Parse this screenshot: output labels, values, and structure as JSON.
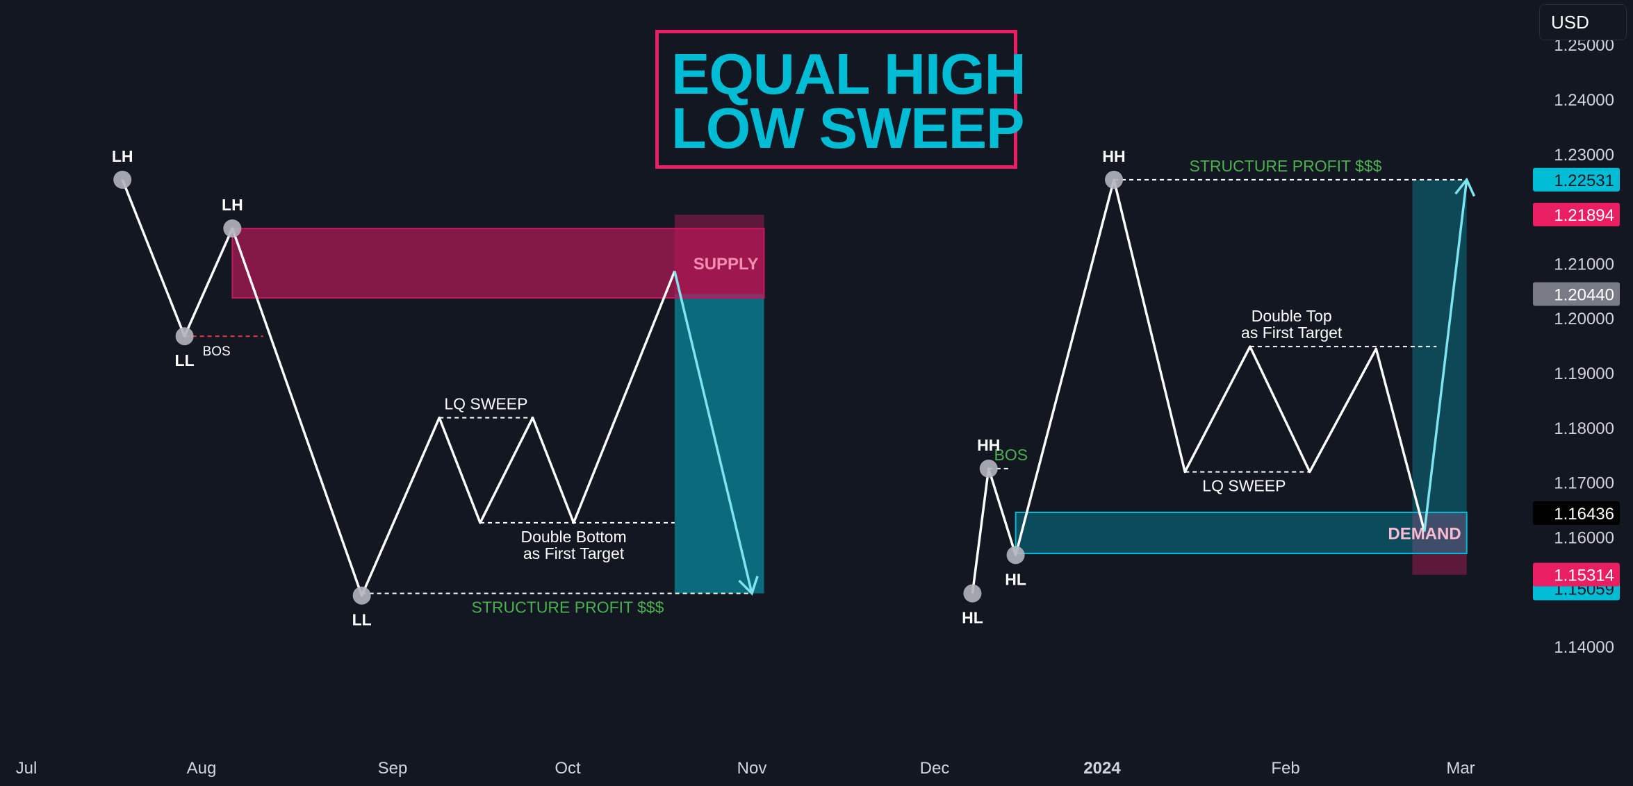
{
  "currency_label": "USD",
  "title": {
    "line1": "EQUAL HIGH",
    "line2": "LOW SWEEP"
  },
  "colors": {
    "background": "#131722",
    "accent_cyan": "#00bcd4",
    "accent_pink": "#e91e63",
    "profit_green": "#4caf50",
    "bos_red": "#f23645"
  },
  "chart_data": {
    "type": "line",
    "x_labels": [
      "Jul",
      "Aug",
      "Sep",
      "Oct",
      "Nov",
      "Dec",
      "2024",
      "Feb",
      "Mar"
    ],
    "y_ticks": [
      "1.25000",
      "1.24000",
      "1.23000",
      "1.22000",
      "1.21000",
      "1.20000",
      "1.19000",
      "1.18000",
      "1.17000",
      "1.16000",
      "1.15000",
      "1.14000"
    ],
    "ylim": [
      1.1355,
      1.2515
    ],
    "price_badges": [
      {
        "value": "1.22531",
        "price": 1.22531,
        "color": "#00bcd4",
        "text_color": "#131722"
      },
      {
        "value": "1.21894",
        "price": 1.21894,
        "color": "#e91e63",
        "text_color": "#ffffff"
      },
      {
        "value": "1.20440",
        "price": 1.2044,
        "color": "#787b86",
        "text_color": "#ffffff"
      },
      {
        "value": "1.16436",
        "price": 1.16436,
        "color": "#000000",
        "text_color": "#ffffff"
      },
      {
        "value": "1.15059",
        "price": 1.15059,
        "color": "#00bcd4",
        "text_color": "#131722"
      },
      {
        "value": "1.15314",
        "price": 1.15314,
        "color": "#e91e63",
        "text_color": "#ffffff"
      }
    ],
    "series": [
      {
        "x": [
          "2023-07-18",
          "2023-07-29",
          "2023-08-06",
          "2023-08-27",
          "2023-09-09",
          "2023-09-16",
          "2023-09-25",
          "2023-10-02",
          "2023-10-19"
        ],
        "y": [
          1.2253,
          1.1967,
          1.2164,
          1.1493,
          1.1818,
          1.1626,
          1.1818,
          1.1626,
          1.2086
        ]
      },
      {
        "x": [
          "2023-12-08",
          "2023-12-11",
          "2023-12-16",
          "2024-01-03",
          "2024-01-15",
          "2024-01-26",
          "2024-02-05",
          "2024-02-16",
          "2024-02-24"
        ],
        "y": [
          1.1497,
          1.1725,
          1.1567,
          1.2253,
          1.1719,
          1.1948,
          1.1719,
          1.1944,
          1.161
        ]
      }
    ],
    "projection_arrows": [
      {
        "x": [
          "2023-10-19",
          "2023-11-01"
        ],
        "y": [
          1.2086,
          1.1497
        ]
      },
      {
        "x": [
          "2024-02-24",
          "2024-03-02"
        ],
        "y": [
          1.161,
          1.2253
        ]
      }
    ],
    "markers": [
      {
        "label": "LH",
        "x": "2023-07-18",
        "y": 1.2253,
        "label_pos": "above"
      },
      {
        "label": "LL",
        "x": "2023-07-29",
        "y": 1.1967,
        "label_pos": "below"
      },
      {
        "label": "LH",
        "x": "2023-08-06",
        "y": 1.2164,
        "label_pos": "above"
      },
      {
        "label": "LL",
        "x": "2023-08-27",
        "y": 1.1493,
        "label_pos": "below"
      },
      {
        "label": "HL",
        "x": "2023-12-08",
        "y": 1.1497,
        "label_pos": "below"
      },
      {
        "label": "HH",
        "x": "2023-12-11",
        "y": 1.1725,
        "label_pos": "above"
      },
      {
        "label": "HL",
        "x": "2023-12-16",
        "y": 1.1567,
        "label_pos": "below"
      },
      {
        "label": "HH",
        "x": "2024-01-03",
        "y": 1.2253,
        "label_pos": "above"
      }
    ],
    "levels": [
      {
        "x1": "2023-07-29",
        "x2": "2023-08-11",
        "y": 1.1967,
        "color": "#f23645",
        "text": "BOS",
        "text_color": "#ffffff"
      },
      {
        "x1": "2023-09-09",
        "x2": "2023-09-25",
        "y": 1.1818,
        "color": "#ffffff",
        "text": "LQ SWEEP",
        "text_pos": "above"
      },
      {
        "x1": "2023-09-16",
        "x2": "2023-10-19",
        "y": 1.1626,
        "color": "#ffffff",
        "text": "Double Bottom\nas First Target",
        "text_x": "2023-10-02",
        "text_pos": "below"
      },
      {
        "x1": "2023-08-27",
        "x2": "2023-11-01",
        "y": 1.1497,
        "color": "#ffffff",
        "text": "STRUCTURE PROFIT $$$",
        "text_x": "2023-10-01",
        "text_color": "#4caf50",
        "text_pos": "below"
      },
      {
        "x1": "2023-12-11",
        "x2": "2023-12-15",
        "y": 1.1725,
        "color": "#ffffff",
        "text": "BOS",
        "text_x": "2023-12-12",
        "text_color": "#4caf50",
        "text_pos": "above",
        "text_anchor": "start"
      },
      {
        "x1": "2024-01-15",
        "x2": "2024-02-05",
        "y": 1.1719,
        "color": "#ffffff",
        "text": "LQ SWEEP",
        "text_x": "2024-01-25",
        "text_pos": "below"
      },
      {
        "x1": "2024-01-26",
        "x2": "2024-02-26",
        "y": 1.1948,
        "color": "#ffffff",
        "text": "Double Top\nas First Target",
        "text_x": "2024-02-02",
        "text_pos": "above"
      },
      {
        "x1": "2024-01-03",
        "x2": "2024-03-02",
        "y": 1.2253,
        "color": "#ffffff",
        "text": "STRUCTURE PROFIT $$$",
        "text_x": "2024-02-01",
        "text_color": "#4caf50",
        "text_pos": "above"
      }
    ],
    "zones": [
      {
        "name": "SUPPLY",
        "x1": "2023-08-06",
        "x2": "2023-11-03",
        "y1": 1.2164,
        "y2": 1.2037,
        "fill": "#c2185b",
        "opacity": 0.65,
        "text_color": "#f48fb1"
      },
      {
        "name": "DEMAND",
        "x1": "2023-12-16",
        "x2": "2024-03-02",
        "y1": 1.1645,
        "y2": 1.157,
        "fill": "#00bcd4",
        "opacity": 0.32,
        "text_color": "#f8bbd0"
      }
    ],
    "position_boxes": [
      {
        "x1": "2023-10-19",
        "x2": "2023-11-03",
        "entry": 1.2044,
        "stop": 1.2189,
        "target": 1.1497
      },
      {
        "x1": "2024-02-22",
        "x2": "2024-03-02",
        "entry": 1.1644,
        "stop": 1.1531,
        "target": 1.2253
      }
    ]
  }
}
